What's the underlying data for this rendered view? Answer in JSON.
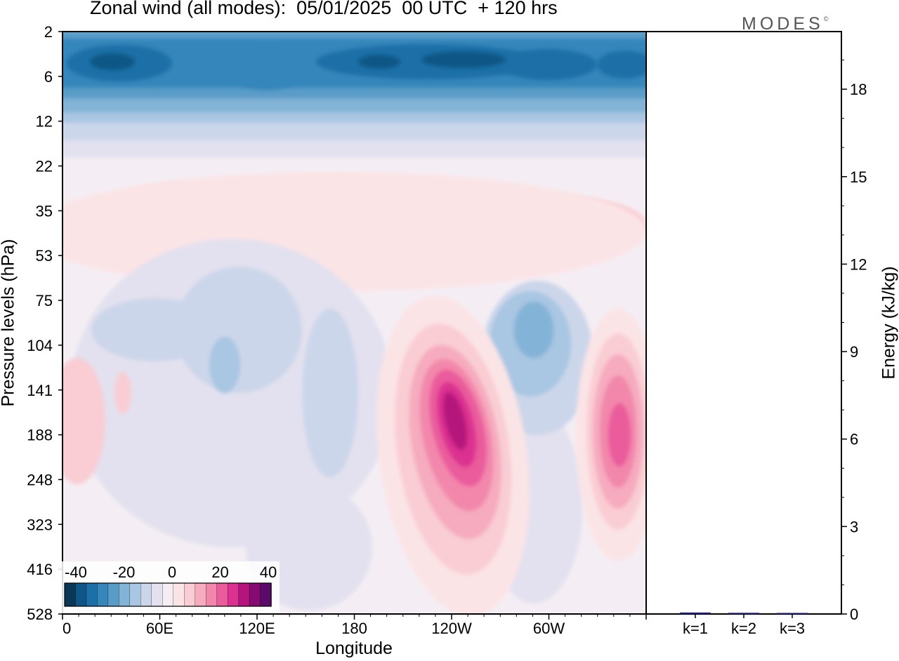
{
  "chart_title": "Zonal wind (all modes):  05/01/2025  00 UTC  + 120 hrs",
  "brand_name": "MODES",
  "brand_mark": "©",
  "chart_data": [
    {
      "type": "heatmap",
      "title": "Zonal wind (all modes):  05/01/2025  00 UTC  + 120 hrs",
      "xlabel": "Longitude",
      "ylabel": "Pressure levels (hPa)",
      "x_ticks": [
        "0",
        "60E",
        "120E",
        "180",
        "120W",
        "60W"
      ],
      "x_tick_degrees": [
        0,
        60,
        120,
        180,
        240,
        300
      ],
      "xlim": [
        0,
        360
      ],
      "y_ticks": [
        "2",
        "6",
        "12",
        "22",
        "35",
        "53",
        "75",
        "104",
        "141",
        "188",
        "248",
        "323",
        "416",
        "528"
      ],
      "colorbar": {
        "tick_labels": [
          "-40",
          "-20",
          "0",
          "20",
          "40"
        ],
        "levels": [
          -40,
          -35,
          -30,
          -25,
          -20,
          -15,
          -10,
          -5,
          0,
          5,
          10,
          15,
          20,
          25,
          30,
          35,
          40
        ],
        "colors": [
          "#0b3756",
          "#0f5686",
          "#1c6fa7",
          "#3586bb",
          "#5a9cc8",
          "#83b3d6",
          "#a9c6e2",
          "#ccd6ea",
          "#e3e1ef",
          "#f4eef4",
          "#fbe4e6",
          "#f9cdd3",
          "#f6abbf",
          "#f287ab",
          "#ea5c9b",
          "#db3191",
          "#b5147c",
          "#850b70",
          "#5c0a6a"
        ]
      },
      "features": [
        {
          "name": "stratospheric easterlies",
          "lon_range": [
            0,
            360
          ],
          "level_range": [
            "2",
            "16"
          ],
          "value_min": -40
        },
        {
          "name": "jet maximum near 120W",
          "lon_center": 245,
          "level_center": "175",
          "value_max": 35
        },
        {
          "name": "jet maximum near 30W",
          "lon_center": 345,
          "level_center": "185",
          "value_max": 27
        },
        {
          "name": "easterly pocket near 80W",
          "lon_center": 282,
          "level_center": "105",
          "value_min": -15
        }
      ]
    },
    {
      "type": "bar",
      "ylabel": "Energy (kJ/kg)",
      "categories": [
        "k=1",
        "k=2",
        "k=3"
      ],
      "values": [
        0.05,
        0.04,
        0.02
      ],
      "ylim": [
        0,
        20
      ],
      "y_ticks": [
        "0",
        "3",
        "6",
        "9",
        "12",
        "15",
        "18"
      ],
      "bar_color": "#1a1a8c"
    }
  ]
}
